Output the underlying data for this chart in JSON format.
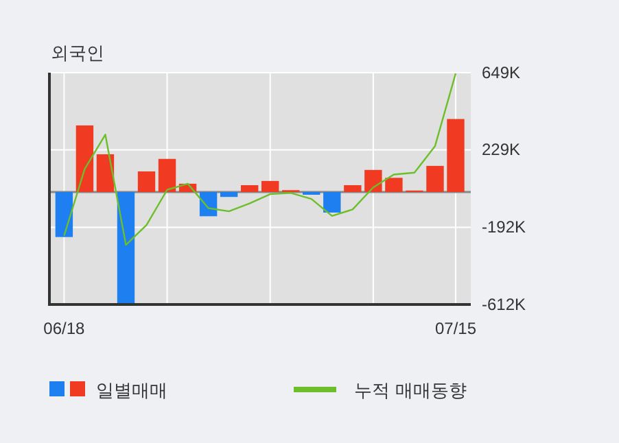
{
  "chart_data": {
    "type": "bar",
    "title": "외국인",
    "categories": [
      "06/18",
      null,
      null,
      null,
      null,
      null,
      null,
      null,
      null,
      null,
      null,
      null,
      null,
      null,
      null,
      null,
      null,
      null,
      null,
      "07/15"
    ],
    "series": [
      {
        "name": "일별매매",
        "colors": [
          "#1e7ff0",
          "#f03a22",
          "#f03a22",
          "#1e7ff0",
          "#f03a22",
          "#f03a22",
          "#f03a22",
          "#1e7ff0",
          "#1e7ff0",
          "#f03a22",
          "#f03a22",
          "#f03a22",
          "#1e7ff0",
          "#1e7ff0",
          "#f03a22",
          "#f03a22",
          "#f03a22",
          "#f03a22",
          "#f03a22",
          "#f03a22"
        ],
        "values": [
          -245,
          362,
          205,
          -610,
          112,
          180,
          45,
          -132,
          -27,
          37,
          60,
          10,
          -15,
          -112,
          37,
          120,
          77,
          8,
          142,
          397
        ]
      },
      {
        "name": "누적 매매동향",
        "type": "line",
        "color": "#6cbf2a",
        "values": [
          -238,
          125,
          312,
          -288,
          -180,
          12,
          45,
          -88,
          -105,
          -62,
          -12,
          -5,
          -38,
          -130,
          -95,
          25,
          95,
          105,
          250,
          645
        ]
      }
    ],
    "ylim": [
      -612,
      649
    ],
    "yticks": [
      {
        "value": 649,
        "label": "649K"
      },
      {
        "value": 229,
        "label": "229K"
      },
      {
        "value": -192,
        "label": "-192K"
      },
      {
        "value": -612,
        "label": "-612K"
      }
    ],
    "grid": true,
    "legend": "bottom",
    "marker": "none",
    "line_style": "solid"
  }
}
